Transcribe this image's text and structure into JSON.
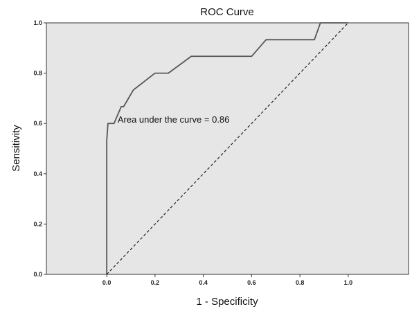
{
  "chart_data": {
    "type": "line",
    "title": "ROC Curve",
    "xlabel": "1 - Specificity",
    "ylabel": "Sensitivity",
    "xlim": [
      -0.25,
      1.25
    ],
    "ylim": [
      0.0,
      1.0
    ],
    "xticks": [
      0.0,
      0.2,
      0.4,
      0.6,
      0.8,
      1.0
    ],
    "yticks": [
      0.0,
      0.2,
      0.4,
      0.6,
      0.8,
      1.0
    ],
    "xtick_labels": [
      "0.0",
      "0.2",
      "0.4",
      "0.6",
      "0.8",
      "1.0"
    ],
    "ytick_labels": [
      "0.0",
      "0.2",
      "0.4",
      "0.6",
      "0.8",
      "1.0"
    ],
    "grid": false,
    "background_color": "#e6e6e6",
    "annotation": "Area under the curve = 0.86",
    "annotation_at": [
      0.045,
      0.6
    ],
    "series": [
      {
        "role": "roc",
        "color": "#555555",
        "x": [
          0.0,
          0.0,
          0.005,
          0.02,
          0.03,
          0.06,
          0.07,
          0.11,
          0.2,
          0.255,
          0.35,
          0.6,
          0.66,
          0.86,
          0.885,
          1.0
        ],
        "y": [
          0.0,
          0.533,
          0.6,
          0.6,
          0.6,
          0.667,
          0.667,
          0.733,
          0.8,
          0.8,
          0.867,
          0.867,
          0.933,
          0.933,
          1.0,
          1.0
        ]
      },
      {
        "role": "reference",
        "color": "#222222",
        "dashed": true,
        "x": [
          0.0,
          1.0
        ],
        "y": [
          0.0,
          1.0
        ]
      }
    ]
  }
}
